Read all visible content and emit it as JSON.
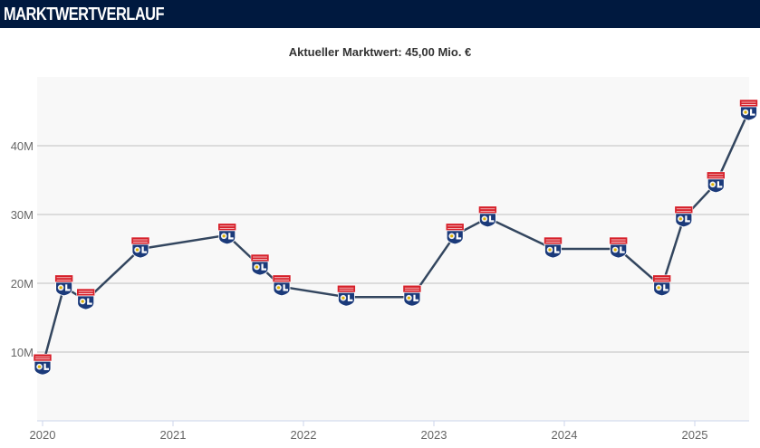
{
  "header": {
    "title": "MARKTWERTVERLAUF"
  },
  "chart_data": {
    "type": "line",
    "title": "Aktueller Marktwert: 45,00 Mio. €",
    "xlabel": "",
    "ylabel": "",
    "x_ticks": [
      "2020",
      "2021",
      "2022",
      "2023",
      "2024",
      "2025"
    ],
    "y_ticks": [
      "10M",
      "20M",
      "30M",
      "40M"
    ],
    "ylim": [
      0,
      50
    ],
    "xlim": [
      "2020-01-01",
      "2025-06-30"
    ],
    "grid": true,
    "line_color": "#33465f",
    "marker": "club-crest-icon",
    "series": [
      {
        "points": [
          {
            "x": "2020-01-01",
            "y": 8
          },
          {
            "x": "2020-03-01",
            "y": 19.5
          },
          {
            "x": "2020-05-01",
            "y": 17.5
          },
          {
            "x": "2020-10-01",
            "y": 25
          },
          {
            "x": "2021-06-01",
            "y": 27
          },
          {
            "x": "2021-09-01",
            "y": 22.5
          },
          {
            "x": "2021-11-01",
            "y": 19.5
          },
          {
            "x": "2022-05-01",
            "y": 18
          },
          {
            "x": "2022-11-01",
            "y": 18
          },
          {
            "x": "2023-03-01",
            "y": 27
          },
          {
            "x": "2023-06-01",
            "y": 29.5
          },
          {
            "x": "2023-12-01",
            "y": 25
          },
          {
            "x": "2024-06-01",
            "y": 25
          },
          {
            "x": "2024-10-01",
            "y": 19.5
          },
          {
            "x": "2024-12-01",
            "y": 29.5
          },
          {
            "x": "2025-03-01",
            "y": 34.5
          },
          {
            "x": "2025-06-01",
            "y": 45
          }
        ]
      }
    ]
  }
}
